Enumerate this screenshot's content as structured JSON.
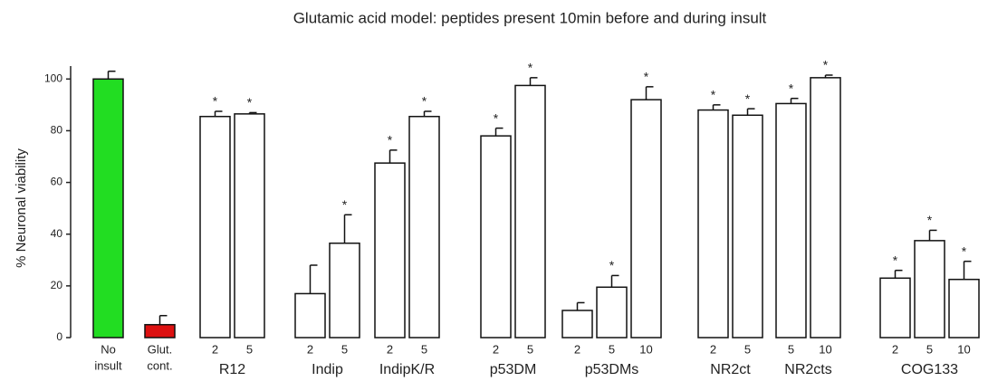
{
  "chart_data": {
    "type": "bar",
    "title": "Glutamic acid model: peptides present 10min before and during insult",
    "y_label": "% Neuronal viability",
    "ylim": [
      0,
      105
    ],
    "yticks": [
      0,
      20,
      40,
      60,
      80,
      100
    ],
    "star_label": "*",
    "groups": [
      {
        "label": [
          "No",
          "insult"
        ],
        "color": "#22dd22",
        "bars": [
          {
            "dose": null,
            "value": 100,
            "error": 3,
            "star": false
          }
        ]
      },
      {
        "label": [
          "Glut.",
          "cont."
        ],
        "color": "#dd1111",
        "bars": [
          {
            "dose": null,
            "value": 5,
            "error": 3.5,
            "star": false
          }
        ]
      },
      {
        "label": [
          "R12"
        ],
        "color": "#ffffff",
        "bars": [
          {
            "dose": "2",
            "value": 85.5,
            "error": 2,
            "star": true
          },
          {
            "dose": "5",
            "value": 86.5,
            "error": 0.5,
            "star": true
          }
        ]
      },
      {
        "label": [
          "Indip"
        ],
        "color": "#ffffff",
        "bars": [
          {
            "dose": "2",
            "value": 17,
            "error": 11,
            "star": false
          },
          {
            "dose": "5",
            "value": 36.5,
            "error": 11,
            "star": true
          }
        ]
      },
      {
        "label": [
          "IndipK/R"
        ],
        "color": "#ffffff",
        "bars": [
          {
            "dose": "2",
            "value": 67.5,
            "error": 5,
            "star": true
          },
          {
            "dose": "5",
            "value": 85.5,
            "error": 2,
            "star": true
          }
        ]
      },
      {
        "label": [
          "p53DM"
        ],
        "color": "#ffffff",
        "bars": [
          {
            "dose": "2",
            "value": 78,
            "error": 3,
            "star": true
          },
          {
            "dose": "5",
            "value": 97.5,
            "error": 3,
            "star": true
          }
        ]
      },
      {
        "label": [
          "p53DMs"
        ],
        "color": "#ffffff",
        "bars": [
          {
            "dose": "2",
            "value": 10.5,
            "error": 3,
            "star": false
          },
          {
            "dose": "5",
            "value": 19.5,
            "error": 4.5,
            "star": true
          },
          {
            "dose": "10",
            "value": 92,
            "error": 5,
            "star": true
          }
        ]
      },
      {
        "label": [
          "NR2ct"
        ],
        "color": "#ffffff",
        "bars": [
          {
            "dose": "2",
            "value": 88,
            "error": 2,
            "star": true
          },
          {
            "dose": "5",
            "value": 86,
            "error": 2.5,
            "star": true
          }
        ]
      },
      {
        "label": [
          "NR2cts"
        ],
        "color": "#ffffff",
        "bars": [
          {
            "dose": "5",
            "value": 90.5,
            "error": 2,
            "star": true
          },
          {
            "dose": "10",
            "value": 100.5,
            "error": 1,
            "star": true
          }
        ]
      },
      {
        "label": [
          "COG133"
        ],
        "color": "#ffffff",
        "bars": [
          {
            "dose": "2",
            "value": 23,
            "error": 3,
            "star": true
          },
          {
            "dose": "5",
            "value": 37.5,
            "error": 4,
            "star": true
          },
          {
            "dose": "10",
            "value": 22.5,
            "error": 7,
            "star": true
          }
        ]
      }
    ]
  }
}
